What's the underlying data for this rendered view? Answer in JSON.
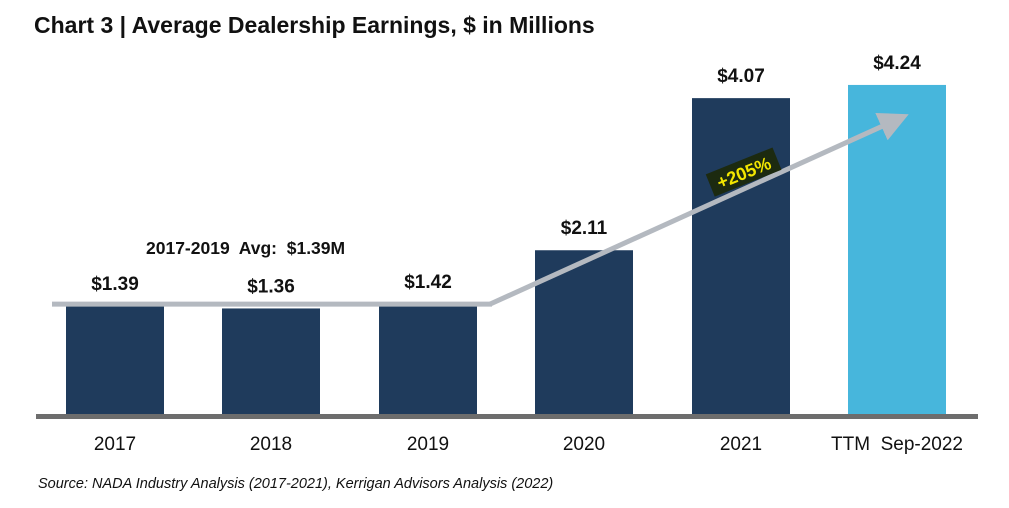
{
  "title": "Chart 3 | Average Dealership Earnings, $ in Millions",
  "source": "Source: NADA Industry Analysis (2017-2021), Kerrigan Advisors Analysis (2022)",
  "chart_data": {
    "type": "bar",
    "title": "Chart 3 | Average Dealership Earnings, $ in Millions",
    "categories": [
      "2017",
      "2018",
      "2019",
      "2020",
      "2021",
      "TTM Sep-2022"
    ],
    "values": [
      1.39,
      1.36,
      1.42,
      2.11,
      4.07,
      4.24
    ],
    "value_labels": [
      "$1.39",
      "$1.36",
      "$1.42",
      "$2.11",
      "$4.07",
      "$4.24"
    ],
    "ylim": [
      0,
      4.6
    ],
    "grid": false,
    "legend": "none",
    "colors": {
      "bar": "#1f3b5c",
      "highlight_bar": "#47b6dc",
      "trend_arrow": "#b4b9c0",
      "axis": "#6d6d6d",
      "growth_badge_bg": "#1c2a10",
      "growth_badge_text": "#f2e600"
    },
    "annotations": {
      "average": "2017-2019  Avg:  $1.39M",
      "average_value": 1.39,
      "growth": "+205%"
    }
  }
}
